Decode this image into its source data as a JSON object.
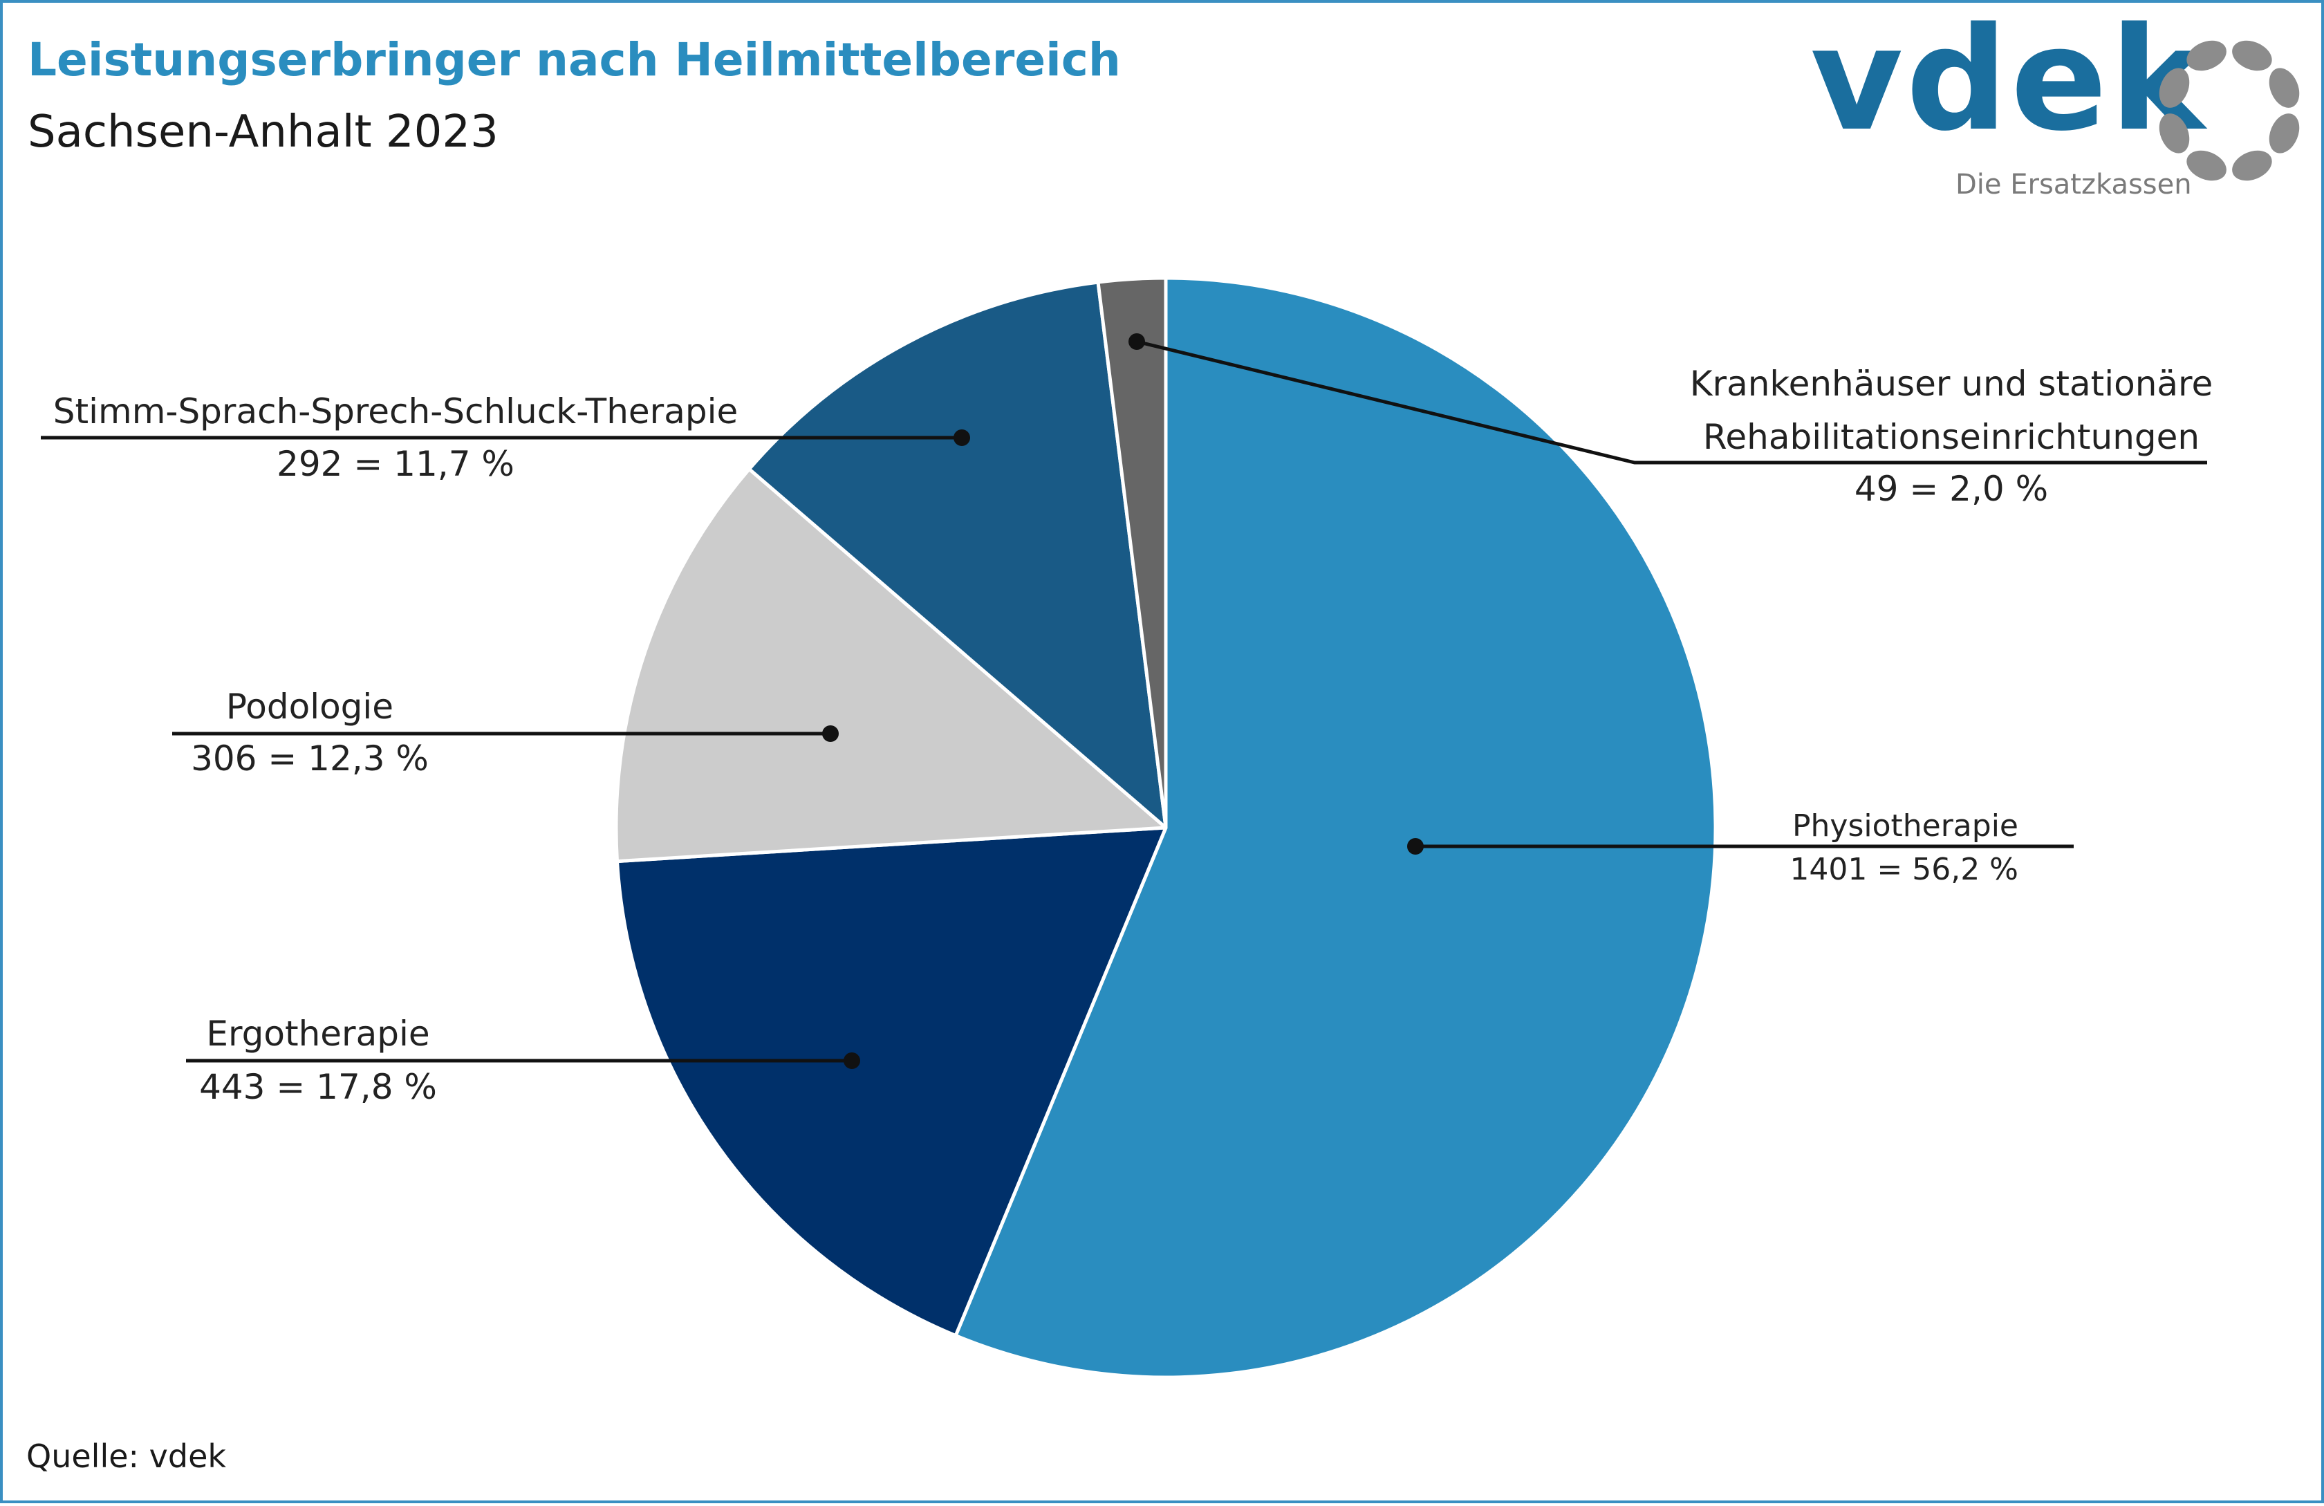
{
  "header": {
    "title": "Leistungserbringer nach Heilmittelbereich",
    "subtitle": "Sachsen-Anhalt 2023"
  },
  "footer": {
    "source": "Quelle: vdek"
  },
  "logo": {
    "wordmark": "vdek",
    "tagline": "Die Ersatzkassen",
    "color_word": "#1a6e9e",
    "color_ring": "#8c8c8c"
  },
  "chart_data": {
    "type": "pie",
    "start_angle_deg": 0,
    "direction": "clockwise",
    "slices": [
      {
        "name": "Physiotherapie",
        "value": 1401,
        "label_value": "1401 = 56,2 %",
        "percent": 56.2,
        "color": "#2a8dbf"
      },
      {
        "name": "Ergotherapie",
        "value": 443,
        "label_value": "443 = 17,8 %",
        "percent": 17.8,
        "color": "#00306a"
      },
      {
        "name": "Podologie",
        "value": 306,
        "label_value": "306 = 12,3 %",
        "percent": 12.3,
        "color": "#cccccc"
      },
      {
        "name": "Stimm-Sprach-Sprech-Schluck-Therapie",
        "value": 292,
        "label_value": "292 = 11,7 %",
        "percent": 11.7,
        "color": "#195a86"
      },
      {
        "name_lines": [
          "Krankenhäuser und stationäre",
          "Rehabilitationseinrichtungen"
        ],
        "value": 49,
        "label_value": "49 = 2,0 %",
        "percent": 2.0,
        "color": "#666666"
      }
    ]
  }
}
